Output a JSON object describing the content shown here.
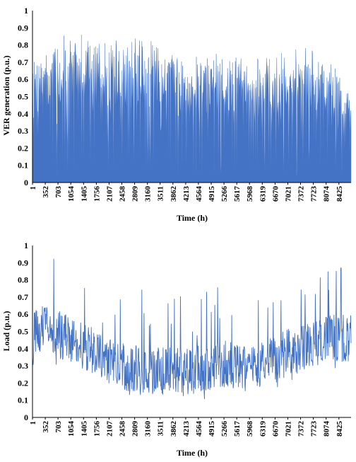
{
  "colors": {
    "series": "#4472c4",
    "axis": "#000000",
    "background": "#ffffff"
  },
  "chart_data": [
    {
      "type": "area",
      "title": "",
      "xlabel": "Time (h)",
      "ylabel": "VER generation (p.u.)",
      "xlim": [
        1,
        8760
      ],
      "ylim": [
        0,
        1
      ],
      "yticks": [
        "0",
        "0.1",
        "0.2",
        "0.3",
        "0.4",
        "0.5",
        "0.6",
        "0.7",
        "0.8",
        "0.9",
        "1"
      ],
      "xticks": [
        "1",
        "352",
        "703",
        "1054",
        "1405",
        "1756",
        "2107",
        "2458",
        "2809",
        "3160",
        "3511",
        "3862",
        "4213",
        "4564",
        "4915",
        "5266",
        "5617",
        "5968",
        "6319",
        "6670",
        "7021",
        "7372",
        "7723",
        "8074",
        "8425"
      ],
      "grid": false,
      "legend": "none",
      "series": [
        {
          "x": [
            1,
            176,
            352,
            527,
            703,
            878,
            1054,
            1229,
            1405,
            1580,
            1756,
            1931,
            2107,
            2282,
            2458,
            2633,
            2809,
            2984,
            3160,
            3335,
            3511,
            3686,
            3862,
            4037,
            4213,
            4388,
            4564,
            4739,
            4915,
            5090,
            5266,
            5441,
            5617,
            5792,
            5968,
            6143,
            6319,
            6494,
            6670,
            6845,
            7021,
            7196,
            7372,
            7547,
            7723,
            7898,
            8074,
            8249,
            8425,
            8600,
            8760
          ],
          "values": [
            0.65,
            0.7,
            0.68,
            0.74,
            0.78,
            0.8,
            0.78,
            0.8,
            0.82,
            0.81,
            0.8,
            0.78,
            0.78,
            0.76,
            0.77,
            0.8,
            0.8,
            0.79,
            0.78,
            0.78,
            0.76,
            0.74,
            0.73,
            0.7,
            0.68,
            0.66,
            0.68,
            0.69,
            0.72,
            0.7,
            0.7,
            0.71,
            0.7,
            0.69,
            0.68,
            0.68,
            0.66,
            0.66,
            0.68,
            0.7,
            0.71,
            0.72,
            0.73,
            0.72,
            0.72,
            0.7,
            0.67,
            0.64,
            0.6,
            0.55,
            0.5
          ]
        }
      ]
    },
    {
      "type": "line",
      "title": "",
      "xlabel": "Time (h)",
      "ylabel": "Load (p.u.)",
      "xlim": [
        1,
        8760
      ],
      "ylim": [
        0,
        1
      ],
      "yticks": [
        "0",
        "0.1",
        "0.2",
        "0.3",
        "0.4",
        "0.5",
        "0.6",
        "0.7",
        "0.8",
        "0.9",
        "1"
      ],
      "xticks": [
        "1",
        "352",
        "703",
        "1054",
        "1405",
        "1756",
        "2107",
        "2458",
        "2809",
        "3160",
        "3511",
        "3862",
        "4213",
        "4564",
        "4915",
        "5266",
        "5617",
        "5968",
        "6319",
        "6670",
        "7021",
        "7372",
        "7723",
        "8074",
        "8425"
      ],
      "grid": false,
      "legend": "none",
      "series": [
        {
          "x": [
            1,
            176,
            352,
            527,
            703,
            878,
            1054,
            1229,
            1405,
            1580,
            1756,
            1931,
            2107,
            2282,
            2458,
            2633,
            2809,
            2984,
            3160,
            3335,
            3511,
            3686,
            3862,
            4037,
            4213,
            4388,
            4564,
            4739,
            4915,
            5090,
            5266,
            5441,
            5617,
            5792,
            5968,
            6143,
            6319,
            6494,
            6670,
            6845,
            7021,
            7196,
            7372,
            7547,
            7723,
            7898,
            8074,
            8249,
            8425,
            8600,
            8760
          ],
          "values": [
            0.47,
            0.5,
            0.52,
            0.5,
            0.48,
            0.47,
            0.46,
            0.44,
            0.42,
            0.4,
            0.38,
            0.35,
            0.33,
            0.32,
            0.3,
            0.29,
            0.28,
            0.27,
            0.27,
            0.27,
            0.27,
            0.27,
            0.27,
            0.27,
            0.27,
            0.27,
            0.28,
            0.28,
            0.29,
            0.3,
            0.31,
            0.3,
            0.29,
            0.28,
            0.28,
            0.29,
            0.3,
            0.32,
            0.34,
            0.36,
            0.38,
            0.39,
            0.4,
            0.41,
            0.42,
            0.44,
            0.45,
            0.46,
            0.47,
            0.47,
            0.46
          ]
        }
      ]
    }
  ]
}
